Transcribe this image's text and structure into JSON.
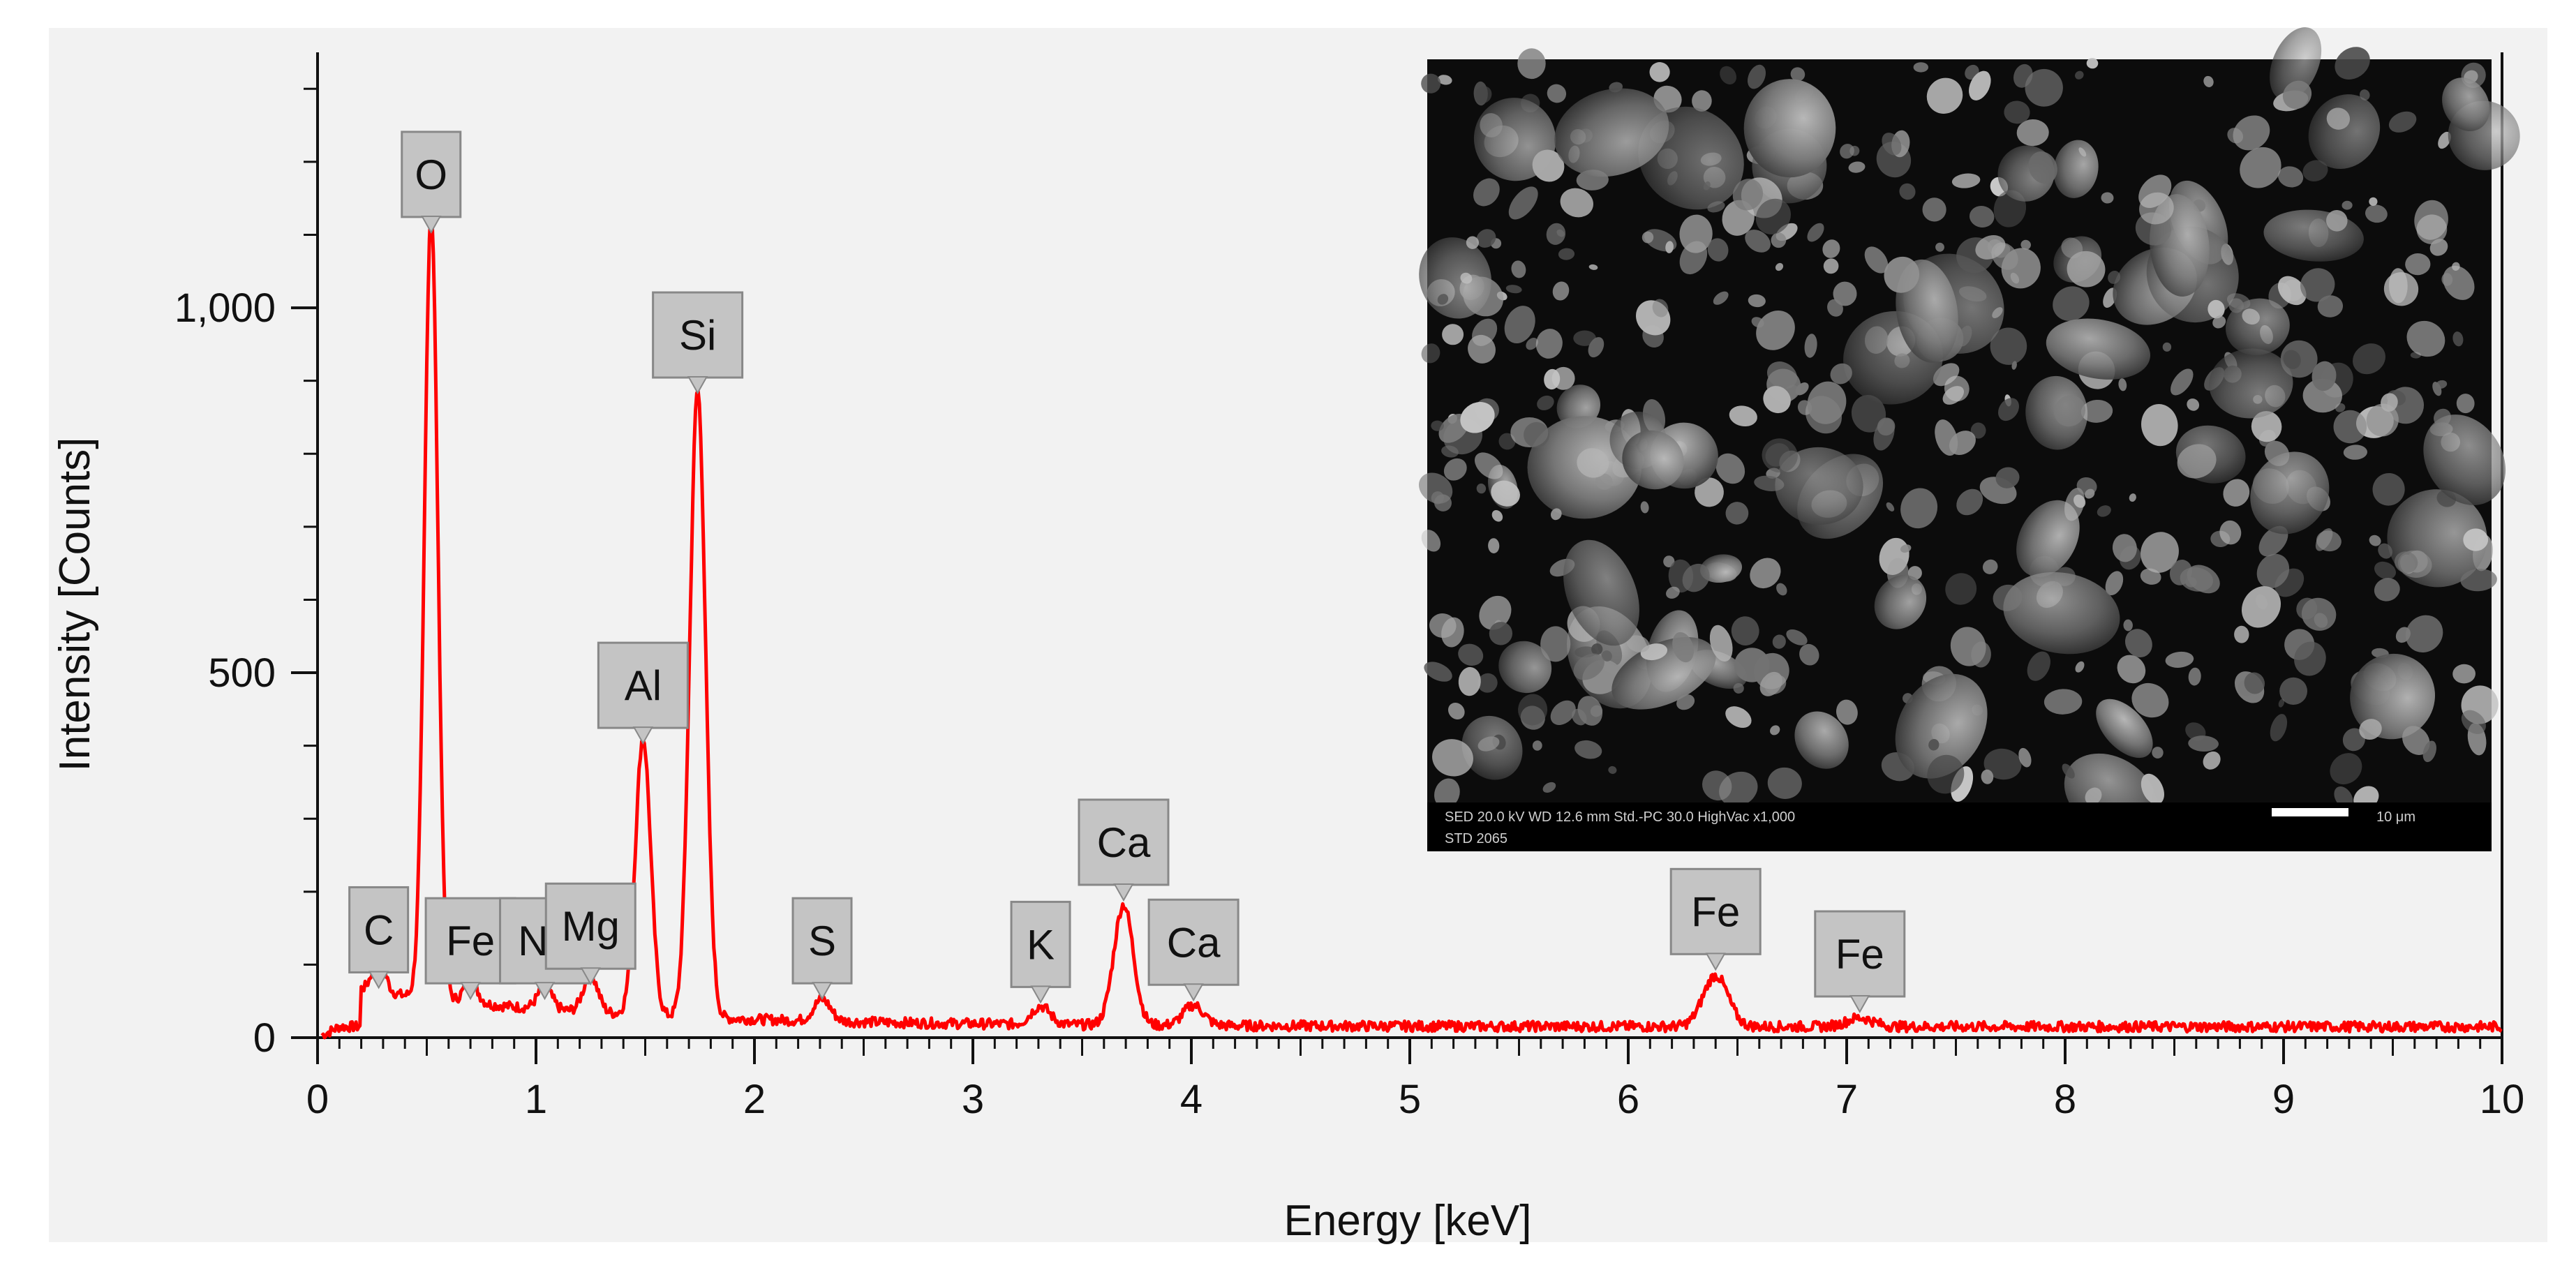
{
  "chart_data": {
    "type": "line",
    "xlabel": "Energy [keV]",
    "ylabel": "Intensity [Counts]",
    "xlim": [
      0,
      10
    ],
    "ylim": [
      0,
      1350
    ],
    "x_ticks": [
      "0",
      "1",
      "2",
      "3",
      "4",
      "5",
      "6",
      "7",
      "8",
      "9",
      "10"
    ],
    "y_ticks": [
      {
        "value": 0,
        "label": "0"
      },
      {
        "value": 500,
        "label": "500"
      },
      {
        "value": 1000,
        "label": "1,000"
      }
    ],
    "grid": false,
    "line_color": "#ff0000",
    "baseline_counts": 15,
    "peaks": [
      {
        "label": "C",
        "energy": 0.28,
        "counts": 55
      },
      {
        "label": "O",
        "energy": 0.52,
        "counts": 1090
      },
      {
        "label": "Fe",
        "energy": 0.7,
        "counts": 40
      },
      {
        "label": "Na",
        "energy": 1.04,
        "counts": 40
      },
      {
        "label": "Mg",
        "energy": 1.25,
        "counts": 60
      },
      {
        "label": "Al",
        "energy": 1.49,
        "counts": 390
      },
      {
        "label": "Si",
        "energy": 1.74,
        "counts": 870
      },
      {
        "label": "S",
        "energy": 2.31,
        "counts": 40
      },
      {
        "label": "K",
        "energy": 3.31,
        "counts": 35
      },
      {
        "label": "Ca",
        "energy": 3.69,
        "counts": 175
      },
      {
        "label": "Ca",
        "energy": 4.01,
        "counts": 38
      },
      {
        "label": "Fe",
        "energy": 6.4,
        "counts": 80
      },
      {
        "label": "Fe",
        "energy": 7.06,
        "counts": 22
      }
    ]
  },
  "inset": {
    "status_line_1": "SED   20.0 kV   WD 12.6 mm   Std.-PC 30.0   HighVac   x1,000",
    "status_line_2": "STD   2065",
    "scale_bar_label": "10 μm"
  },
  "colors": {
    "plot_background": "#f2f2f2",
    "label_box": "#c4c4c4",
    "label_border": "#888888",
    "spectrum": "#ff0000"
  }
}
